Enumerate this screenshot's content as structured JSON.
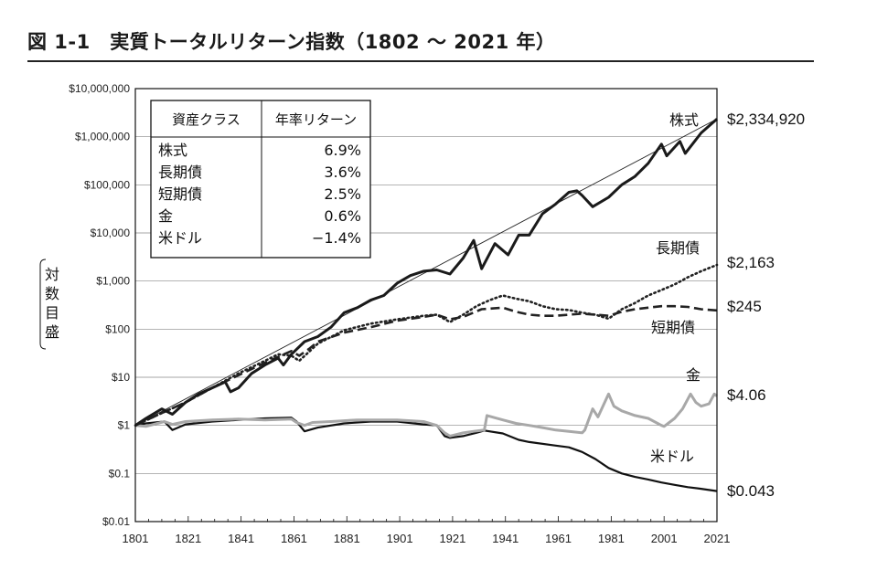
{
  "figure_title": "図 1-1　実質トータルリターン指数（1802 ～ 2021 年）",
  "y_axis_label": [
    "対",
    "数",
    "目",
    "盛"
  ],
  "colors": {
    "stocks": "#1a1a1a",
    "bonds": "#222222",
    "bills": "#222222",
    "gold": "#a8a8a8",
    "dollar": "#111111",
    "grid": "#888888"
  },
  "return_table": {
    "header": [
      "資産クラス",
      "年率リターン"
    ],
    "rows": [
      {
        "asset": "株式",
        "ret": "6.9%"
      },
      {
        "asset": "長期債",
        "ret": "3.6%"
      },
      {
        "asset": "短期債",
        "ret": "2.5%"
      },
      {
        "asset": "金",
        "ret": "0.6%"
      },
      {
        "asset": "米ドル",
        "ret": "−1.4%"
      }
    ]
  },
  "chart_data": {
    "type": "line",
    "title": "実質トータルリターン指数（1802 ～ 2021 年）",
    "y_scale": "log",
    "ylim": [
      0.01,
      10000000
    ],
    "xlim": [
      1801,
      2021
    ],
    "x_ticks": [
      1801,
      1821,
      1841,
      1861,
      1881,
      1901,
      1921,
      1941,
      1961,
      1981,
      2001,
      2021
    ],
    "y_ticks": [
      {
        "value": 0.01,
        "label": "$0.01"
      },
      {
        "value": 0.1,
        "label": "$0.1"
      },
      {
        "value": 1,
        "label": "$1"
      },
      {
        "value": 10,
        "label": "$10"
      },
      {
        "value": 100,
        "label": "$100"
      },
      {
        "value": 1000,
        "label": "$1,000"
      },
      {
        "value": 10000,
        "label": "$10,000"
      },
      {
        "value": 100000,
        "label": "$100,000"
      },
      {
        "value": 1000000,
        "label": "$1,000,000"
      },
      {
        "value": 10000000,
        "label": "$10,000,000"
      }
    ],
    "grid": true,
    "trend_line": {
      "x": [
        1801,
        2021
      ],
      "y": [
        1,
        2334920
      ]
    },
    "series": [
      {
        "name": "株式",
        "style": "solid-thick",
        "end_label": "$2,334,920",
        "points": [
          [
            1801,
            1
          ],
          [
            1805,
            1.4
          ],
          [
            1811,
            2.2
          ],
          [
            1815,
            1.7
          ],
          [
            1820,
            3
          ],
          [
            1825,
            4.5
          ],
          [
            1830,
            6
          ],
          [
            1835,
            8
          ],
          [
            1837,
            5
          ],
          [
            1840,
            6
          ],
          [
            1845,
            12
          ],
          [
            1850,
            18
          ],
          [
            1855,
            25
          ],
          [
            1857,
            18
          ],
          [
            1860,
            30
          ],
          [
            1865,
            55
          ],
          [
            1870,
            70
          ],
          [
            1875,
            110
          ],
          [
            1880,
            220
          ],
          [
            1885,
            280
          ],
          [
            1890,
            400
          ],
          [
            1895,
            500
          ],
          [
            1900,
            900
          ],
          [
            1905,
            1300
          ],
          [
            1910,
            1600
          ],
          [
            1915,
            1700
          ],
          [
            1920,
            1400
          ],
          [
            1925,
            3000
          ],
          [
            1929,
            7000
          ],
          [
            1932,
            1800
          ],
          [
            1937,
            6000
          ],
          [
            1942,
            3500
          ],
          [
            1946,
            9000
          ],
          [
            1950,
            9000
          ],
          [
            1955,
            25000
          ],
          [
            1960,
            40000
          ],
          [
            1965,
            70000
          ],
          [
            1968,
            75000
          ],
          [
            1970,
            60000
          ],
          [
            1974,
            35000
          ],
          [
            1980,
            55000
          ],
          [
            1985,
            100000
          ],
          [
            1990,
            150000
          ],
          [
            1995,
            280000
          ],
          [
            2000,
            700000
          ],
          [
            2002,
            400000
          ],
          [
            2007,
            800000
          ],
          [
            2009,
            450000
          ],
          [
            2015,
            1200000
          ],
          [
            2021,
            2334920
          ]
        ]
      },
      {
        "name": "長期債",
        "style": "dotted",
        "end_label": "$2,163",
        "points": [
          [
            1801,
            1
          ],
          [
            1810,
            1.7
          ],
          [
            1820,
            3
          ],
          [
            1830,
            6
          ],
          [
            1840,
            12
          ],
          [
            1850,
            22
          ],
          [
            1855,
            30
          ],
          [
            1860,
            28
          ],
          [
            1863,
            22
          ],
          [
            1867,
            35
          ],
          [
            1870,
            50
          ],
          [
            1880,
            95
          ],
          [
            1890,
            130
          ],
          [
            1900,
            160
          ],
          [
            1910,
            190
          ],
          [
            1915,
            200
          ],
          [
            1920,
            140
          ],
          [
            1925,
            200
          ],
          [
            1930,
            300
          ],
          [
            1935,
            400
          ],
          [
            1940,
            500
          ],
          [
            1945,
            430
          ],
          [
            1950,
            380
          ],
          [
            1955,
            300
          ],
          [
            1960,
            260
          ],
          [
            1965,
            250
          ],
          [
            1970,
            220
          ],
          [
            1975,
            200
          ],
          [
            1980,
            165
          ],
          [
            1985,
            260
          ],
          [
            1990,
            350
          ],
          [
            1995,
            500
          ],
          [
            2000,
            650
          ],
          [
            2005,
            850
          ],
          [
            2010,
            1200
          ],
          [
            2015,
            1600
          ],
          [
            2021,
            2163
          ]
        ]
      },
      {
        "name": "短期債",
        "style": "dashed",
        "end_label": "$245",
        "points": [
          [
            1801,
            1
          ],
          [
            1810,
            1.7
          ],
          [
            1820,
            3
          ],
          [
            1830,
            6
          ],
          [
            1840,
            11
          ],
          [
            1850,
            20
          ],
          [
            1860,
            35
          ],
          [
            1863,
            28
          ],
          [
            1867,
            40
          ],
          [
            1870,
            55
          ],
          [
            1880,
            85
          ],
          [
            1890,
            110
          ],
          [
            1900,
            150
          ],
          [
            1910,
            180
          ],
          [
            1915,
            200
          ],
          [
            1920,
            160
          ],
          [
            1925,
            180
          ],
          [
            1932,
            260
          ],
          [
            1940,
            280
          ],
          [
            1945,
            230
          ],
          [
            1950,
            200
          ],
          [
            1955,
            190
          ],
          [
            1960,
            190
          ],
          [
            1965,
            200
          ],
          [
            1970,
            210
          ],
          [
            1975,
            200
          ],
          [
            1980,
            190
          ],
          [
            1985,
            230
          ],
          [
            1990,
            260
          ],
          [
            1995,
            280
          ],
          [
            2000,
            300
          ],
          [
            2005,
            300
          ],
          [
            2010,
            290
          ],
          [
            2015,
            260
          ],
          [
            2021,
            245
          ]
        ]
      },
      {
        "name": "金",
        "style": "solid-gray",
        "end_label": "$4.06",
        "points": [
          [
            1801,
            1
          ],
          [
            1805,
            0.95
          ],
          [
            1812,
            1.2
          ],
          [
            1815,
            1.05
          ],
          [
            1820,
            1.2
          ],
          [
            1830,
            1.3
          ],
          [
            1840,
            1.35
          ],
          [
            1850,
            1.3
          ],
          [
            1860,
            1.35
          ],
          [
            1862,
            1.15
          ],
          [
            1865,
            1.0
          ],
          [
            1868,
            1.15
          ],
          [
            1875,
            1.2
          ],
          [
            1885,
            1.3
          ],
          [
            1900,
            1.3
          ],
          [
            1910,
            1.2
          ],
          [
            1915,
            1.0
          ],
          [
            1918,
            0.7
          ],
          [
            1920,
            0.6
          ],
          [
            1925,
            0.7
          ],
          [
            1929,
            0.75
          ],
          [
            1933,
            0.8
          ],
          [
            1934,
            1.6
          ],
          [
            1940,
            1.3
          ],
          [
            1945,
            1.1
          ],
          [
            1950,
            1.0
          ],
          [
            1955,
            0.9
          ],
          [
            1960,
            0.8
          ],
          [
            1965,
            0.75
          ],
          [
            1970,
            0.7
          ],
          [
            1971,
            0.8
          ],
          [
            1974,
            2.2
          ],
          [
            1976,
            1.5
          ],
          [
            1980,
            4.5
          ],
          [
            1982,
            2.5
          ],
          [
            1985,
            2.0
          ],
          [
            1990,
            1.6
          ],
          [
            1995,
            1.4
          ],
          [
            2000,
            1.0
          ],
          [
            2001,
            0.95
          ],
          [
            2005,
            1.4
          ],
          [
            2008,
            2.2
          ],
          [
            2011,
            4.5
          ],
          [
            2013,
            3.0
          ],
          [
            2015,
            2.5
          ],
          [
            2018,
            2.8
          ],
          [
            2020,
            4.5
          ],
          [
            2021,
            4.06
          ]
        ]
      },
      {
        "name": "米ドル",
        "style": "solid-thin",
        "end_label": "$0.043",
        "points": [
          [
            1801,
            1
          ],
          [
            1805,
            1.1
          ],
          [
            1812,
            1.2
          ],
          [
            1815,
            0.8
          ],
          [
            1820,
            1.05
          ],
          [
            1830,
            1.2
          ],
          [
            1840,
            1.3
          ],
          [
            1850,
            1.4
          ],
          [
            1860,
            1.45
          ],
          [
            1862,
            1.2
          ],
          [
            1865,
            0.75
          ],
          [
            1870,
            0.9
          ],
          [
            1880,
            1.1
          ],
          [
            1890,
            1.2
          ],
          [
            1900,
            1.2
          ],
          [
            1910,
            1.05
          ],
          [
            1915,
            1.0
          ],
          [
            1918,
            0.6
          ],
          [
            1920,
            0.55
          ],
          [
            1925,
            0.6
          ],
          [
            1930,
            0.7
          ],
          [
            1933,
            0.78
          ],
          [
            1940,
            0.68
          ],
          [
            1946,
            0.5
          ],
          [
            1950,
            0.45
          ],
          [
            1960,
            0.38
          ],
          [
            1965,
            0.35
          ],
          [
            1970,
            0.28
          ],
          [
            1975,
            0.2
          ],
          [
            1980,
            0.13
          ],
          [
            1985,
            0.1
          ],
          [
            1990,
            0.085
          ],
          [
            1995,
            0.075
          ],
          [
            2000,
            0.065
          ],
          [
            2005,
            0.058
          ],
          [
            2010,
            0.052
          ],
          [
            2015,
            0.048
          ],
          [
            2021,
            0.043
          ]
        ]
      }
    ]
  }
}
